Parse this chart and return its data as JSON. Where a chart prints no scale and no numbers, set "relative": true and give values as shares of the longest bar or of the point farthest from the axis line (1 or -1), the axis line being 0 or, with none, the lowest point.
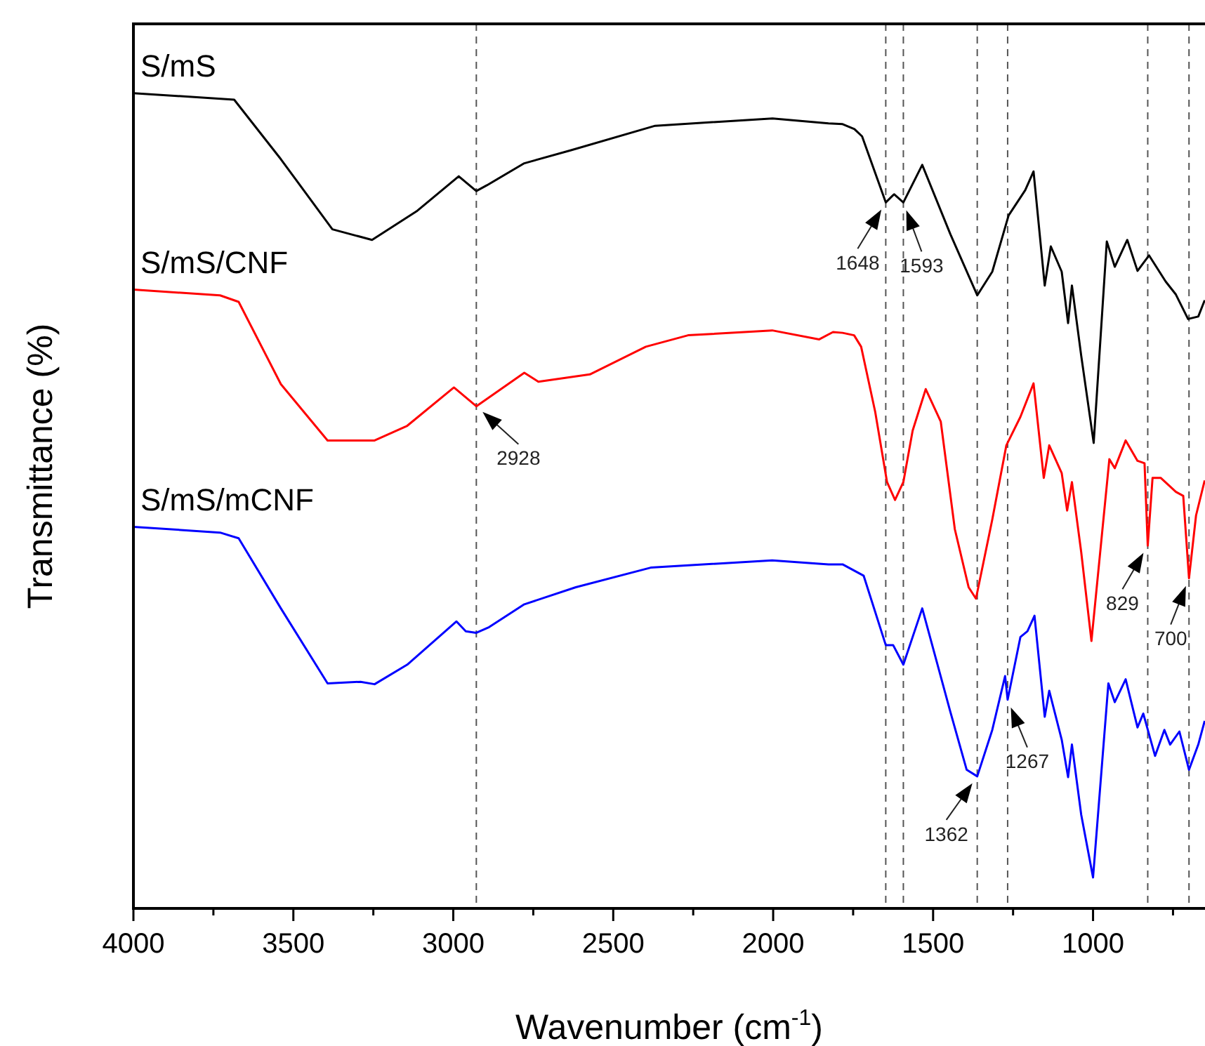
{
  "chart_data": {
    "type": "line",
    "relative": true,
    "xlabel": "Wavenumber (cm$^{-1}$)",
    "ylabel": "Transmittance (%)",
    "xlim": [
      4000,
      650
    ],
    "xticks": [
      4000,
      {
        "value": 3750,
        "label": null
      },
      3500,
      {
        "value": 3250,
        "label": null
      },
      3000,
      {
        "value": 2750,
        "label": null
      },
      2500,
      {
        "value": 2250,
        "label": null
      },
      2000,
      {
        "value": 1750,
        "label": null
      },
      1500,
      {
        "value": 1250,
        "label": null
      },
      1000,
      {
        "value": 750,
        "label": null
      }
    ],
    "grid": false,
    "legend": false,
    "marker": "none",
    "series": [
      {
        "name": "S/mS",
        "color": "#000000",
        "x": [
          4000,
          3685,
          3539,
          3378,
          3254,
          3115,
          2983,
          2928,
          2895,
          2778,
          2632,
          2369,
          2002,
          1827,
          1783,
          1746,
          1722,
          1648,
          1622,
          1593,
          1534,
          1446,
          1362,
          1315,
          1264,
          1212,
          1186,
          1151,
          1132,
          1098,
          1078,
          1066,
          1037,
          998,
          957,
          932,
          893,
          861,
          825,
          773,
          741,
          703,
          671,
          651
        ],
        "values": [
          1.0,
          0.992,
          0.919,
          0.833,
          0.82,
          0.855,
          0.898,
          0.88,
          0.887,
          0.914,
          0.93,
          0.96,
          0.969,
          0.963,
          0.962,
          0.956,
          0.947,
          0.866,
          0.876,
          0.866,
          0.912,
          0.827,
          0.752,
          0.781,
          0.85,
          0.881,
          0.904,
          0.764,
          0.812,
          0.781,
          0.718,
          0.764,
          0.678,
          0.571,
          0.818,
          0.787,
          0.82,
          0.782,
          0.801,
          0.769,
          0.753,
          0.723,
          0.726,
          0.746
        ]
      },
      {
        "name": "S/mS/CNF",
        "color": "#ff0000",
        "x": [
          4000,
          3729,
          3671,
          3539,
          3393,
          3246,
          3144,
          2998,
          2928,
          2778,
          2734,
          2573,
          2398,
          2266,
          2003,
          1856,
          1813,
          1783,
          1747,
          1725,
          1681,
          1644,
          1619,
          1593,
          1564,
          1523,
          1476,
          1432,
          1389,
          1366,
          1315,
          1271,
          1227,
          1186,
          1154,
          1137,
          1098,
          1081,
          1066,
          1037,
          1005,
          949,
          932,
          898,
          861,
          839,
          829,
          814,
          788,
          741,
          718,
          700,
          678,
          651
        ],
        "values": [
          0.759,
          0.752,
          0.744,
          0.643,
          0.574,
          0.574,
          0.592,
          0.639,
          0.616,
          0.657,
          0.646,
          0.655,
          0.689,
          0.703,
          0.709,
          0.698,
          0.707,
          0.706,
          0.703,
          0.689,
          0.609,
          0.523,
          0.501,
          0.523,
          0.586,
          0.637,
          0.597,
          0.465,
          0.394,
          0.38,
          0.477,
          0.568,
          0.603,
          0.644,
          0.528,
          0.568,
          0.534,
          0.488,
          0.523,
          0.437,
          0.328,
          0.551,
          0.54,
          0.574,
          0.549,
          0.546,
          0.445,
          0.528,
          0.528,
          0.511,
          0.506,
          0.405,
          0.482,
          0.525
        ]
      },
      {
        "name": "S/mS/mCNF",
        "color": "#0000ff",
        "x": [
          4000,
          3729,
          3671,
          3539,
          3393,
          3290,
          3246,
          3144,
          2990,
          2961,
          2928,
          2888,
          2778,
          2617,
          2383,
          2003,
          1827,
          1783,
          1717,
          1648,
          1625,
          1593,
          1534,
          1446,
          1395,
          1362,
          1315,
          1275,
          1267,
          1227,
          1205,
          1183,
          1151,
          1137,
          1098,
          1078,
          1066,
          1037,
          1000,
          952,
          932,
          898,
          861,
          843,
          806,
          777,
          759,
          730,
          700,
          671,
          651
        ],
        "values": [
          0.468,
          0.461,
          0.454,
          0.368,
          0.276,
          0.278,
          0.275,
          0.299,
          0.352,
          0.34,
          0.338,
          0.345,
          0.373,
          0.394,
          0.418,
          0.427,
          0.422,
          0.422,
          0.408,
          0.323,
          0.323,
          0.299,
          0.368,
          0.241,
          0.17,
          0.162,
          0.219,
          0.285,
          0.256,
          0.333,
          0.34,
          0.359,
          0.235,
          0.267,
          0.207,
          0.161,
          0.201,
          0.115,
          0.038,
          0.276,
          0.253,
          0.281,
          0.222,
          0.239,
          0.187,
          0.219,
          0.201,
          0.217,
          0.17,
          0.201,
          0.23
        ]
      }
    ],
    "ref_lines": [
      {
        "axis": "x",
        "value": 2928,
        "color": "#555555",
        "line_style": "dashed"
      },
      {
        "axis": "x",
        "value": 1648,
        "color": "#555555",
        "line_style": "dashed"
      },
      {
        "axis": "x",
        "value": 1593,
        "color": "#555555",
        "line_style": "dashed"
      },
      {
        "axis": "x",
        "value": 1362,
        "color": "#555555",
        "line_style": "dashed"
      },
      {
        "axis": "x",
        "value": 1267,
        "color": "#555555",
        "line_style": "dashed"
      },
      {
        "axis": "x",
        "value": 829,
        "color": "#555555",
        "line_style": "dashed"
      },
      {
        "axis": "x",
        "value": 700,
        "color": "#555555",
        "line_style": "dashed"
      }
    ],
    "annotations": [
      {
        "text": "1648",
        "x": 1648,
        "y": 0.866
      },
      {
        "text": "1593",
        "x": 1593,
        "y": 0.866
      },
      {
        "text": "2928",
        "x": 2928,
        "y": 0.616
      },
      {
        "text": "829",
        "x": 829,
        "y": 0.445
      },
      {
        "text": "700",
        "x": 700,
        "y": 0.405
      },
      {
        "text": "1362",
        "x": 1362,
        "y": 0.162
      },
      {
        "text": "1267",
        "x": 1267,
        "y": 0.256
      }
    ]
  }
}
